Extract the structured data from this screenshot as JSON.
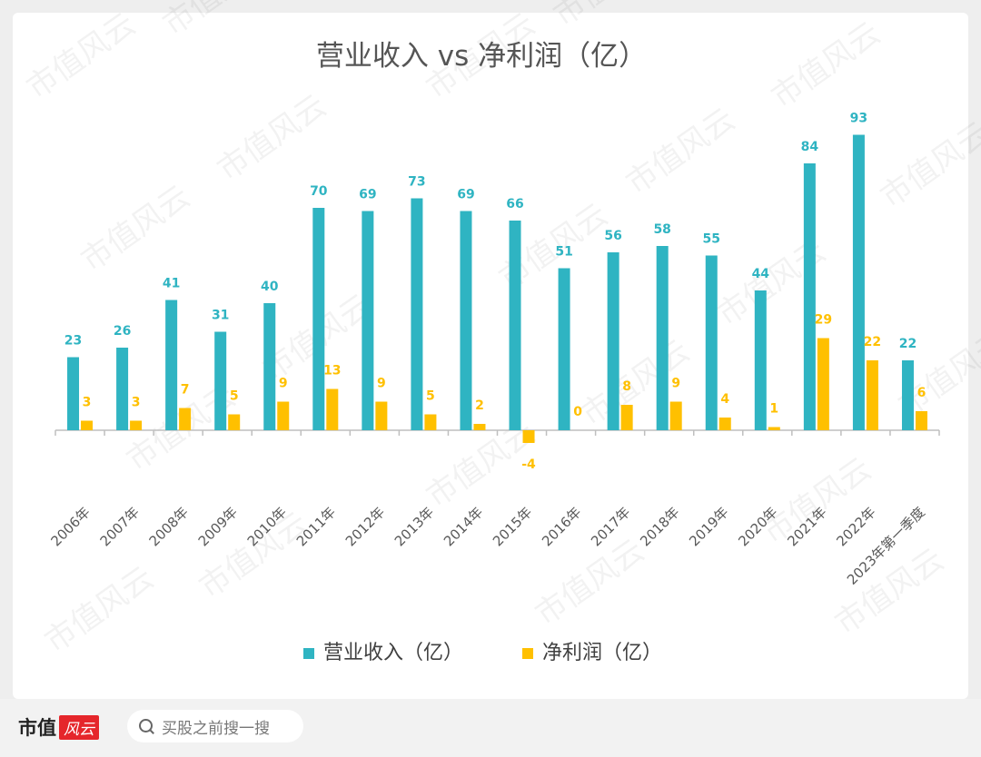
{
  "chart_data": {
    "type": "bar",
    "title": "营业收入 vs 净利润（亿）",
    "categories": [
      "2006年",
      "2007年",
      "2008年",
      "2009年",
      "2010年",
      "2011年",
      "2012年",
      "2013年",
      "2014年",
      "2015年",
      "2016年",
      "2017年",
      "2018年",
      "2019年",
      "2020年",
      "2021年",
      "2022年",
      "2023年第一季度"
    ],
    "series": [
      {
        "name": "营业收入（亿）",
        "color": "#2fb4c2",
        "values": [
          23,
          26,
          41,
          31,
          40,
          70,
          69,
          73,
          69,
          66,
          51,
          56,
          58,
          55,
          44,
          84,
          93,
          22
        ]
      },
      {
        "name": "净利润（亿）",
        "color": "#ffc000",
        "values": [
          3,
          3,
          7,
          5,
          9,
          13,
          9,
          5,
          2,
          -4,
          0,
          8,
          9,
          4,
          1,
          29,
          22,
          6
        ]
      }
    ],
    "xlabel": "",
    "ylabel": "",
    "ylim": [
      -4,
      93
    ],
    "grid": false,
    "legend": "bottom",
    "data_labels": true
  },
  "watermark": "市值风云",
  "footer": {
    "brand": "市值",
    "brand_badge": "风云",
    "search_placeholder": "买股之前搜一搜"
  }
}
